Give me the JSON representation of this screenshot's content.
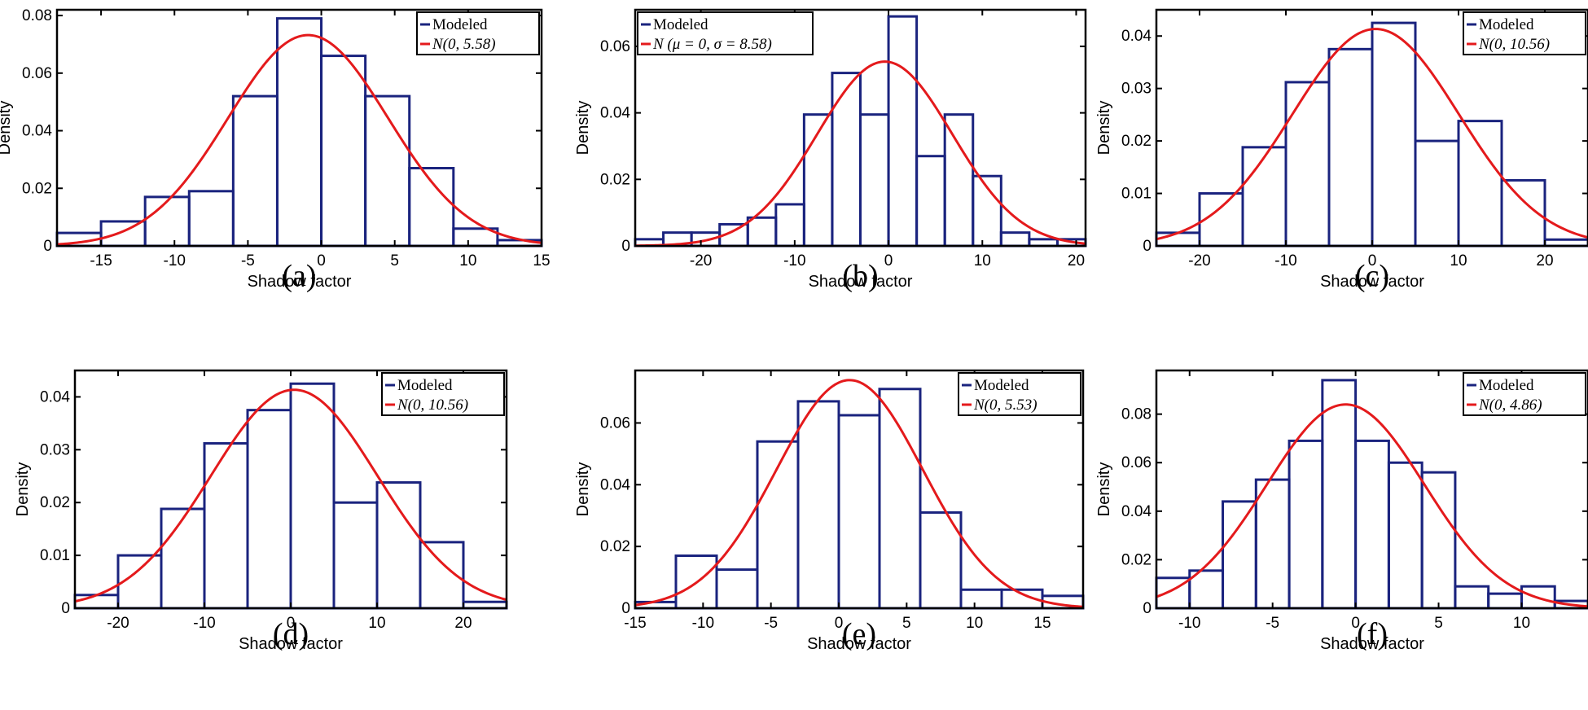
{
  "chart_data": [
    {
      "type": "bar",
      "panel_label": "(a)",
      "xlabel": "Shadow factor",
      "ylabel": "Density",
      "xlim": [
        -18,
        15
      ],
      "ylim": [
        0,
        0.082
      ],
      "xticks": [
        -15,
        -10,
        -5,
        0,
        5,
        10,
        15
      ],
      "xtick_labels": [
        "-15",
        "-10",
        "-5",
        "0",
        "5",
        "10",
        "15"
      ],
      "yticks": [
        0,
        0.02,
        0.04,
        0.06,
        0.08
      ],
      "ytick_labels": [
        "0",
        "0.02",
        "0.04",
        "0.06",
        "0.08"
      ],
      "bin_edges": [
        -18,
        -15,
        -12,
        -9,
        -6,
        -3,
        0,
        3,
        6,
        9,
        12,
        15
      ],
      "values": [
        0.0045,
        0.0085,
        0.017,
        0.019,
        0.052,
        0.079,
        0.066,
        0.052,
        0.027,
        0.006,
        0.002
      ],
      "fit": {
        "mu": -0.9,
        "sigma": 5.45
      },
      "legend": [
        "Modeled",
        "N(0, 5.58)"
      ],
      "legend_position": "top-right",
      "colors": {
        "bars": "#1a237e",
        "fit": "#e41a1c"
      }
    },
    {
      "type": "bar",
      "panel_label": "(b)",
      "xlabel": "Shadow factor",
      "ylabel": "Density",
      "xlim": [
        -27,
        21
      ],
      "ylim": [
        0,
        0.071
      ],
      "xticks": [
        -20,
        -10,
        0,
        10,
        20
      ],
      "xtick_labels": [
        "-20",
        "-10",
        "0",
        "10",
        "20"
      ],
      "yticks": [
        0,
        0.02,
        0.04,
        0.06
      ],
      "ytick_labels": [
        "0",
        "0.02",
        "0.04",
        "0.06"
      ],
      "bin_edges": [
        -27,
        -24,
        -21,
        -18,
        -15,
        -12,
        -9,
        -6,
        -3,
        0,
        3,
        6,
        9,
        12,
        15,
        18,
        21
      ],
      "values": [
        0.002,
        0.004,
        0.004,
        0.0065,
        0.0085,
        0.0125,
        0.0395,
        0.052,
        0.0395,
        0.069,
        0.027,
        0.0395,
        0.021,
        0.004,
        0.002,
        0.002
      ],
      "fit": {
        "mu": -0.4,
        "sigma": 7.2
      },
      "legend": [
        "Modeled",
        "N (μ = 0, σ = 8.58)"
      ],
      "legend_position": "top-left",
      "colors": {
        "bars": "#1a237e",
        "fit": "#e41a1c"
      }
    },
    {
      "type": "bar",
      "panel_label": "(c)",
      "xlabel": "Shadow factor",
      "ylabel": "Density",
      "xlim": [
        -25,
        25
      ],
      "ylim": [
        0,
        0.045
      ],
      "xticks": [
        -20,
        -10,
        0,
        10,
        20
      ],
      "xtick_labels": [
        "-20",
        "-10",
        "0",
        "10",
        "20"
      ],
      "yticks": [
        0,
        0.01,
        0.02,
        0.03,
        0.04
      ],
      "ytick_labels": [
        "0",
        "0.01",
        "0.02",
        "0.03",
        "0.04"
      ],
      "bin_edges": [
        -25,
        -20,
        -15,
        -10,
        -5,
        0,
        5,
        10,
        15,
        20,
        25
      ],
      "values": [
        0.0025,
        0.01,
        0.0188,
        0.0312,
        0.0375,
        0.0425,
        0.02,
        0.0238,
        0.0125,
        0.0012
      ],
      "fit": {
        "mu": 0.4,
        "sigma": 9.65
      },
      "legend": [
        "Modeled",
        "N(0, 10.56)"
      ],
      "legend_position": "top-right",
      "colors": {
        "bars": "#1a237e",
        "fit": "#e41a1c"
      }
    },
    {
      "type": "bar",
      "panel_label": "(d)",
      "xlabel": "Shadow factor",
      "ylabel": "Density",
      "xlim": [
        -25,
        25
      ],
      "ylim": [
        0,
        0.045
      ],
      "xticks": [
        -20,
        -10,
        0,
        10,
        20
      ],
      "xtick_labels": [
        "-20",
        "-10",
        "0",
        "10",
        "20"
      ],
      "yticks": [
        0,
        0.01,
        0.02,
        0.03,
        0.04
      ],
      "ytick_labels": [
        "0",
        "0.01",
        "0.02",
        "0.03",
        "0.04"
      ],
      "bin_edges": [
        -25,
        -20,
        -15,
        -10,
        -5,
        0,
        5,
        10,
        15,
        20,
        25
      ],
      "values": [
        0.0025,
        0.01,
        0.0188,
        0.0312,
        0.0375,
        0.0425,
        0.02,
        0.0238,
        0.0125,
        0.0012
      ],
      "fit": {
        "mu": 0.4,
        "sigma": 9.65
      },
      "legend": [
        "Modeled",
        "N(0, 10.56)"
      ],
      "legend_position": "top-right",
      "colors": {
        "bars": "#1a237e",
        "fit": "#e41a1c"
      }
    },
    {
      "type": "bar",
      "panel_label": "(e)",
      "xlabel": "Shadow factor",
      "ylabel": "Density",
      "xlim": [
        -15,
        18
      ],
      "ylim": [
        0,
        0.077
      ],
      "xticks": [
        -15,
        -10,
        -5,
        0,
        5,
        10,
        15
      ],
      "xtick_labels": [
        "-15",
        "-10",
        "-5",
        "0",
        "5",
        "10",
        "15"
      ],
      "yticks": [
        0,
        0.02,
        0.04,
        0.06
      ],
      "ytick_labels": [
        "0",
        "0.02",
        "0.04",
        "0.06"
      ],
      "bin_edges": [
        -15,
        -12,
        -9,
        -6,
        -3,
        0,
        3,
        6,
        9,
        12,
        15,
        18
      ],
      "values": [
        0.002,
        0.017,
        0.0125,
        0.054,
        0.067,
        0.0625,
        0.071,
        0.031,
        0.006,
        0.006,
        0.004
      ],
      "fit": {
        "mu": 0.8,
        "sigma": 5.4
      },
      "legend": [
        "Modeled",
        "N(0, 5.53)"
      ],
      "legend_position": "top-right",
      "colors": {
        "bars": "#1a237e",
        "fit": "#e41a1c"
      }
    },
    {
      "type": "bar",
      "panel_label": "(f)",
      "xlabel": "Shadow factor",
      "ylabel": "Density",
      "xlim": [
        -12,
        14
      ],
      "ylim": [
        0,
        0.098
      ],
      "xticks": [
        -10,
        -5,
        0,
        5,
        10
      ],
      "xtick_labels": [
        "-10",
        "-5",
        "0",
        "5",
        "10"
      ],
      "yticks": [
        0,
        0.02,
        0.04,
        0.06,
        0.08
      ],
      "ytick_labels": [
        "0",
        "0.02",
        "0.04",
        "0.06",
        "0.08"
      ],
      "bin_edges": [
        -12,
        -10,
        -8,
        -6,
        -4,
        -2,
        0,
        2,
        4,
        6,
        8,
        10,
        12,
        14
      ],
      "values": [
        0.0125,
        0.0155,
        0.044,
        0.053,
        0.069,
        0.094,
        0.069,
        0.06,
        0.056,
        0.009,
        0.006,
        0.009,
        0.003
      ],
      "fit": {
        "mu": -0.6,
        "sigma": 4.75
      },
      "legend": [
        "Modeled",
        "N(0, 4.86)"
      ],
      "legend_position": "top-right",
      "colors": {
        "bars": "#1a237e",
        "fit": "#e41a1c"
      }
    }
  ]
}
